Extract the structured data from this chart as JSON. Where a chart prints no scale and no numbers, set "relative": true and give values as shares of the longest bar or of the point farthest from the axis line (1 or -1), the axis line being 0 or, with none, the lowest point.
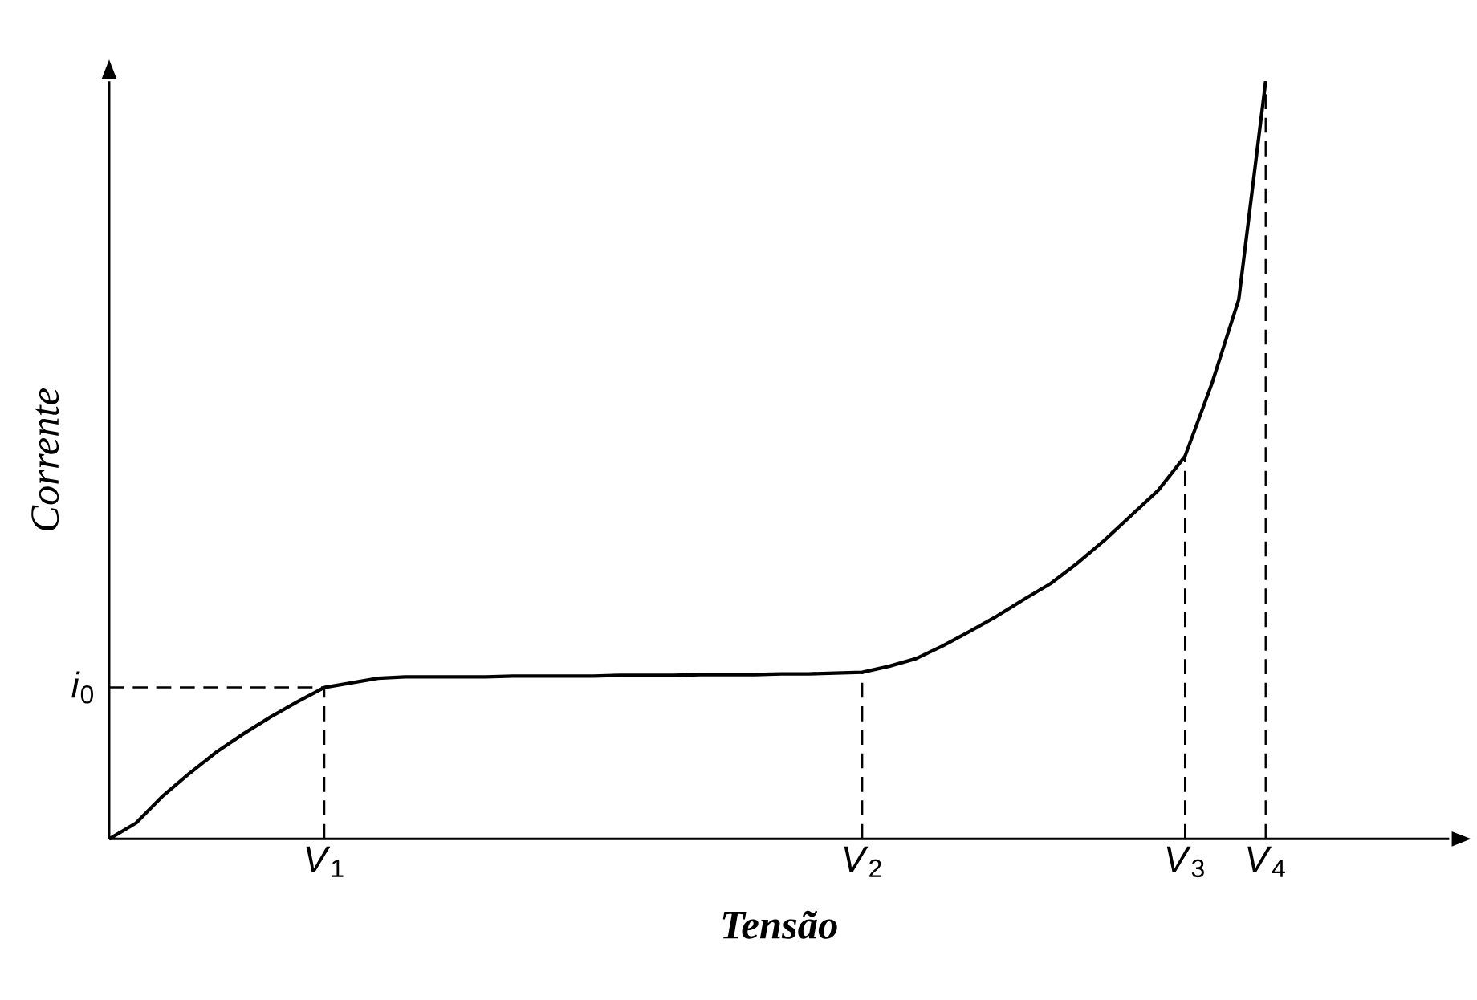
{
  "chart_data": {
    "type": "line",
    "relative": true,
    "xlabel": "Tensão",
    "ylabel": "Corrente",
    "categories": [
      null,
      null,
      null,
      null,
      null,
      null,
      null,
      null,
      "*V*$_{1}$",
      null,
      null,
      null,
      null,
      null,
      null,
      null,
      null,
      null,
      null,
      null,
      null,
      null,
      null,
      null,
      null,
      null,
      null,
      null,
      "*V*$_{2}$",
      null,
      null,
      null,
      null,
      null,
      null,
      null,
      null,
      null,
      null,
      null,
      "*V*$_{3}$",
      null,
      null,
      "*V*$_{4}$"
    ],
    "series": [
      {
        "color": "#000000",
        "values": [
          0,
          0.021,
          0.057,
          0.087,
          0.115,
          0.139,
          0.161,
          0.181,
          0.2,
          0.206,
          0.212,
          0.214,
          0.214,
          0.214,
          0.214,
          0.215,
          0.215,
          0.215,
          0.215,
          0.216,
          0.216,
          0.216,
          0.217,
          0.217,
          0.217,
          0.218,
          0.218,
          0.219,
          0.22,
          0.228,
          0.238,
          0.255,
          0.274,
          0.294,
          0.316,
          0.337,
          0.364,
          0.394,
          0.427,
          0.46,
          0.505,
          0.601,
          0.712,
          1.0
        ]
      }
    ],
    "ref_lines": [
      {
        "axis": "y",
        "value": 0.2,
        "label": "*i*$_{0}$",
        "line_style": "dashed",
        "color": "#000000"
      },
      {
        "axis": "x",
        "value": "*V*$_{1}$",
        "line_style": "dashed",
        "color": "#000000"
      },
      {
        "axis": "x",
        "value": "*V*$_{2}$",
        "line_style": "dashed",
        "color": "#000000"
      },
      {
        "axis": "x",
        "value": "*V*$_{3}$",
        "line_style": "dashed",
        "color": "#000000"
      },
      {
        "axis": "x",
        "value": "*V*$_{4}$",
        "line_style": "dashed",
        "color": "#000000"
      }
    ],
    "grid": false,
    "marker": "none",
    "line_style": "solid"
  }
}
